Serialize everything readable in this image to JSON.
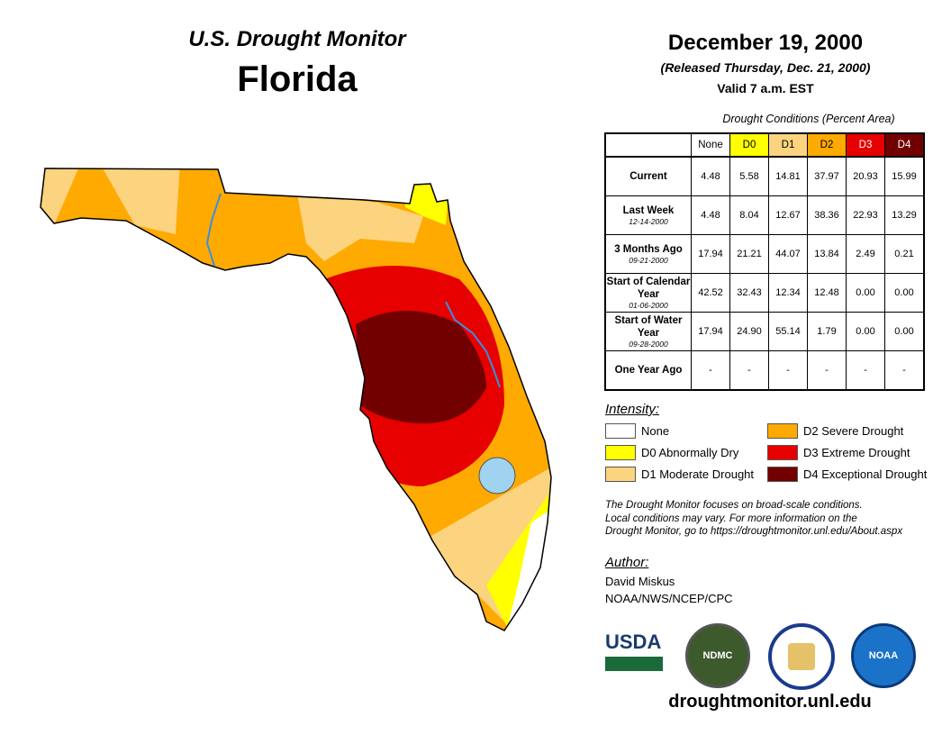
{
  "title": "U.S. Drought Monitor",
  "state": "Florida",
  "date": "December 19, 2000",
  "released": "(Released Thursday, Dec. 21, 2000)",
  "valid": "Valid 7 a.m. EST",
  "table": {
    "caption": "Drought Conditions (Percent Area)",
    "headers": [
      "None",
      "D0",
      "D1",
      "D2",
      "D3",
      "D4"
    ],
    "header_colors": [
      "#ffffff",
      "#ffff00",
      "#fcd37f",
      "#ffaa00",
      "#e60000",
      "#730000"
    ],
    "rows": [
      {
        "label": "Current",
        "date": "",
        "values": [
          "4.48",
          "5.58",
          "14.81",
          "37.97",
          "20.93",
          "15.99"
        ]
      },
      {
        "label": "Last Week",
        "date": "12-14-2000",
        "values": [
          "4.48",
          "8.04",
          "12.67",
          "38.36",
          "22.93",
          "13.29"
        ]
      },
      {
        "label": "3 Months Ago",
        "date": "09-21-2000",
        "values": [
          "17.94",
          "21.21",
          "44.07",
          "13.84",
          "2.49",
          "0.21"
        ]
      },
      {
        "label": "Start of Calendar Year",
        "date": "01-06-2000",
        "values": [
          "42.52",
          "32.43",
          "12.34",
          "12.48",
          "0.00",
          "0.00"
        ]
      },
      {
        "label": "Start of Water Year",
        "date": "09-28-2000",
        "values": [
          "17.94",
          "24.90",
          "55.14",
          "1.79",
          "0.00",
          "0.00"
        ]
      },
      {
        "label": "One Year Ago",
        "date": "",
        "values": [
          "-",
          "-",
          "-",
          "-",
          "-",
          "-"
        ]
      }
    ]
  },
  "legend": {
    "title": "Intensity:",
    "items": [
      {
        "label": "None",
        "color": "#ffffff"
      },
      {
        "label": "D0 Abnormally Dry",
        "color": "#ffff00"
      },
      {
        "label": "D1 Moderate Drought",
        "color": "#fcd37f"
      },
      {
        "label": "D2 Severe Drought",
        "color": "#ffaa00"
      },
      {
        "label": "D3 Extreme Drought",
        "color": "#e60000"
      },
      {
        "label": "D4 Exceptional Drought",
        "color": "#730000"
      }
    ]
  },
  "note": [
    "The Drought Monitor focuses on broad-scale conditions.",
    "Local conditions may vary. For more information on the",
    "Drought Monitor, go to https://droughtmonitor.unl.edu/About.aspx"
  ],
  "author": {
    "title": "Author:",
    "name": "David Miskus",
    "org": "NOAA/NWS/NCEP/CPC"
  },
  "logos": [
    "USDA",
    "NDMC",
    "NOAA"
  ],
  "site": "droughtmonitor.unl.edu"
}
